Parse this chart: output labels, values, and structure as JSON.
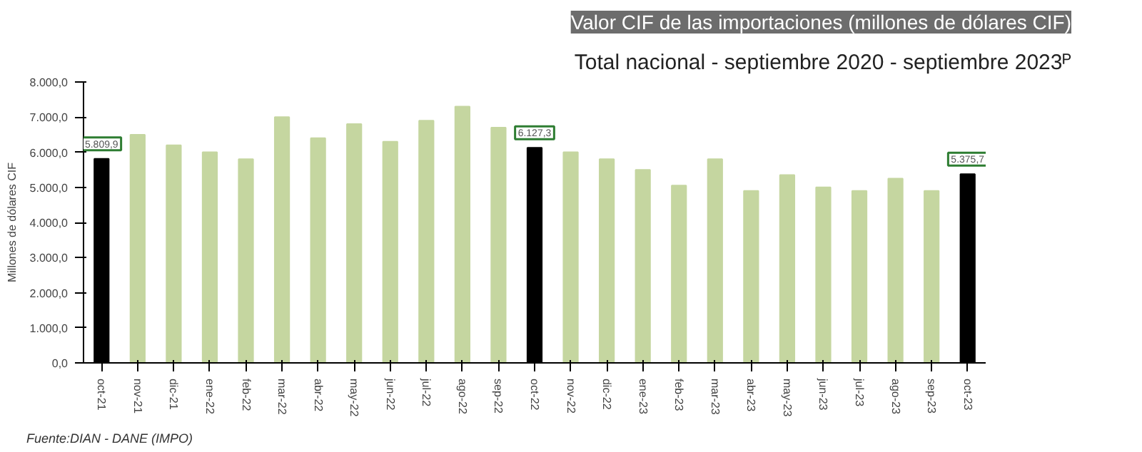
{
  "chart_data": {
    "type": "bar",
    "title": "Valor CIF de las importaciones (millones de dólares CIF)",
    "subtitle": "Total nacional - septiembre 2020 - septiembre 2023ᴾ",
    "ylabel": "Millones de dólares CIF",
    "categories": [
      "oct-21",
      "nov-21",
      "dic-21",
      "ene-22",
      "feb-22",
      "mar-22",
      "abr-22",
      "may-22",
      "jun-22",
      "jul-22",
      "ago-22",
      "sep-22",
      "oct-22",
      "nov-22",
      "dic-22",
      "ene-23",
      "feb-23",
      "mar-23",
      "abr-23",
      "may-23",
      "jun-23",
      "jul-23",
      "ago-23",
      "sep-23",
      "oct-23"
    ],
    "values": [
      5809.9,
      6500,
      6200,
      6000,
      5800,
      7000,
      6400,
      6800,
      6300,
      6900,
      7300,
      6700,
      6127.3,
      6000,
      5800,
      5500,
      5050,
      5800,
      4900,
      5350,
      5000,
      4900,
      5250,
      4900,
      5375.7
    ],
    "colors": [
      "#000000",
      "#c5d6a0",
      "#c5d6a0",
      "#c5d6a0",
      "#c5d6a0",
      "#c5d6a0",
      "#c5d6a0",
      "#c5d6a0",
      "#c5d6a0",
      "#c5d6a0",
      "#c5d6a0",
      "#c5d6a0",
      "#000000",
      "#c5d6a0",
      "#c5d6a0",
      "#c5d6a0",
      "#c5d6a0",
      "#c5d6a0",
      "#c5d6a0",
      "#c5d6a0",
      "#c5d6a0",
      "#c5d6a0",
      "#c5d6a0",
      "#c5d6a0",
      "#000000"
    ],
    "value_labels": [
      "5.809,9",
      null,
      null,
      null,
      null,
      null,
      null,
      null,
      null,
      null,
      null,
      null,
      "6.127,3",
      null,
      null,
      null,
      null,
      null,
      null,
      null,
      null,
      null,
      null,
      null,
      "5.375,7"
    ],
    "ylim": [
      0,
      8000
    ],
    "yticks": [
      {
        "value": 0,
        "label": "0,0"
      },
      {
        "value": 1000,
        "label": "1.000,0"
      },
      {
        "value": 2000,
        "label": "2.000,0"
      },
      {
        "value": 3000,
        "label": "3.000,0"
      },
      {
        "value": 4000,
        "label": "4.000,0"
      },
      {
        "value": 5000,
        "label": "5.000,0"
      },
      {
        "value": 6000,
        "label": "6.000,0"
      },
      {
        "value": 7000,
        "label": "7.000,0"
      },
      {
        "value": 8000,
        "label": "8.000,0"
      }
    ],
    "grid": false,
    "annotations": [
      "Fuente:DIAN - DANE (IMPO)"
    ]
  }
}
